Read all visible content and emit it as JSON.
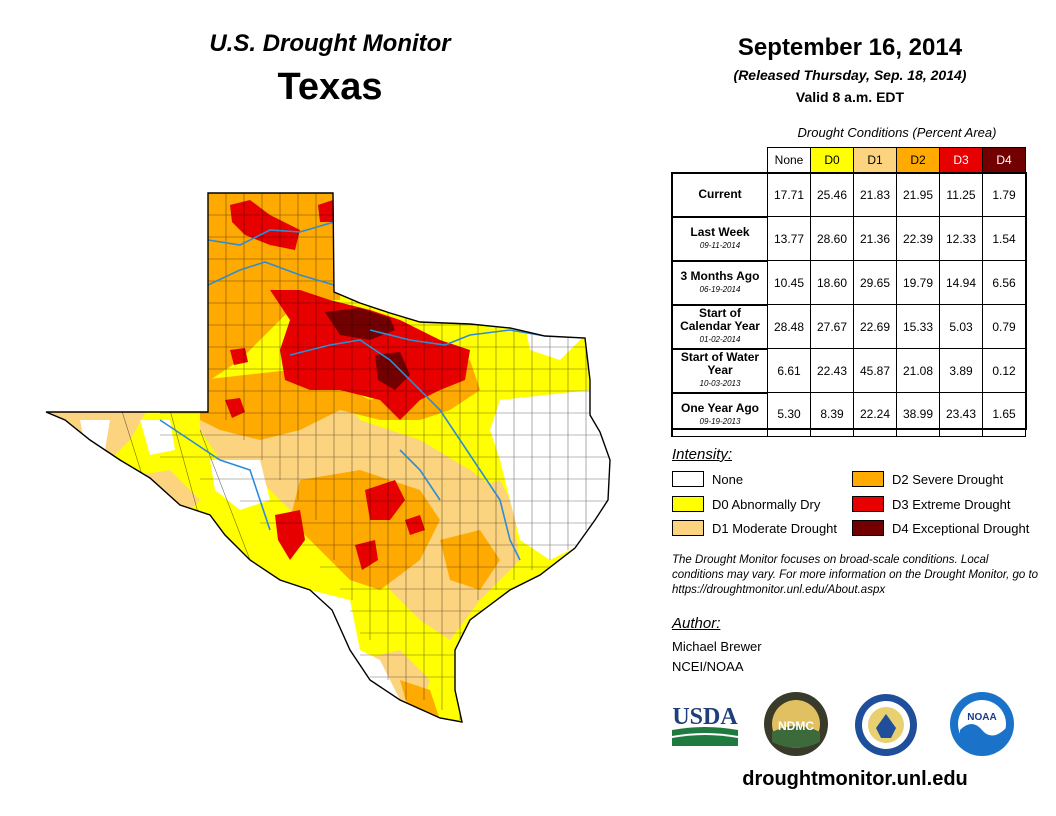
{
  "header": {
    "program": "U.S. Drought Monitor",
    "state": "Texas",
    "date": "September 16, 2014",
    "released": "(Released Thursday, Sep. 18, 2014)",
    "valid": "Valid 8 a.m. EDT"
  },
  "table": {
    "caption": "Drought Conditions (Percent Area)",
    "columns": [
      "None",
      "D0",
      "D1",
      "D2",
      "D3",
      "D4"
    ],
    "column_colors": [
      "#ffffff",
      "#ffff00",
      "#fcd37f",
      "#ffaa00",
      "#e60000",
      "#730000"
    ],
    "rows": [
      {
        "label": "Current",
        "date": "",
        "values": [
          "17.71",
          "25.46",
          "21.83",
          "21.95",
          "11.25",
          "1.79"
        ]
      },
      {
        "label": "Last Week",
        "date": "09-11-2014",
        "values": [
          "13.77",
          "28.60",
          "21.36",
          "22.39",
          "12.33",
          "1.54"
        ]
      },
      {
        "label": "3 Months Ago",
        "date": "06-19-2014",
        "values": [
          "10.45",
          "18.60",
          "29.65",
          "19.79",
          "14.94",
          "6.56"
        ]
      },
      {
        "label": "Start of Calendar Year",
        "date": "01-02-2014",
        "values": [
          "28.48",
          "27.67",
          "22.69",
          "15.33",
          "5.03",
          "0.79"
        ]
      },
      {
        "label": "Start of Water Year",
        "date": "10-03-2013",
        "values": [
          "6.61",
          "22.43",
          "45.87",
          "21.08",
          "3.89",
          "0.12"
        ]
      },
      {
        "label": "One Year Ago",
        "date": "09-19-2013",
        "values": [
          "5.30",
          "8.39",
          "22.24",
          "38.99",
          "23.43",
          "1.65"
        ]
      }
    ]
  },
  "legend": {
    "title": "Intensity:",
    "items": [
      {
        "label": "None",
        "color": "#ffffff"
      },
      {
        "label": "D0 Abnormally Dry",
        "color": "#ffff00"
      },
      {
        "label": "D1 Moderate Drought",
        "color": "#fcd37f"
      },
      {
        "label": "D2 Severe Drought",
        "color": "#ffaa00"
      },
      {
        "label": "D3 Extreme Drought",
        "color": "#e60000"
      },
      {
        "label": "D4 Exceptional Drought",
        "color": "#730000"
      }
    ]
  },
  "note": "The Drought Monitor focuses on broad-scale conditions. Local conditions may vary. For more information on the Drought Monitor, go to https://droughtmonitor.unl.edu/About.aspx",
  "author": {
    "title": "Author:",
    "name": "Michael Brewer",
    "org": "NCEI/NOAA"
  },
  "logos": {
    "usda": "USDA",
    "ndmc": "NDMC",
    "noaa": "NOAA"
  },
  "website": "droughtmonitor.unl.edu"
}
